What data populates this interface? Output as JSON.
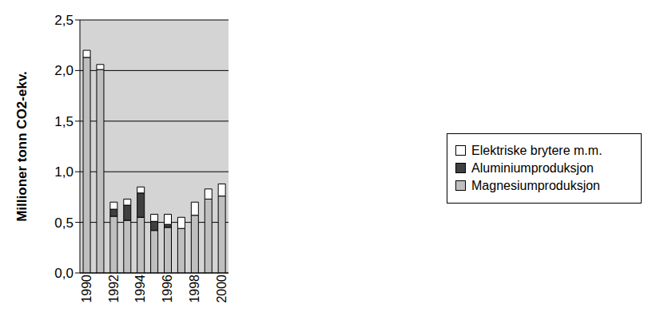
{
  "chart_data": {
    "type": "bar",
    "y_label": "Millioner tonn CO2-ekv.",
    "categories": [
      "1990",
      null,
      "1992",
      null,
      "1994",
      null,
      "1996",
      null,
      "1998",
      null,
      "2000"
    ],
    "series": [
      {
        "name": "Magnesiumproduksjon",
        "color": "#bfbfbf",
        "values": [
          2.13,
          2.01,
          0.56,
          0.52,
          0.55,
          0.42,
          0.45,
          0.44,
          0.57,
          0.73,
          0.76
        ]
      },
      {
        "name": "Aluminiumproduksjon",
        "color": "#404040",
        "values": [
          0,
          0,
          0.07,
          0.15,
          0.24,
          0.09,
          0.03,
          0,
          0,
          0,
          0
        ]
      },
      {
        "name": "Elektriske brytere m.m.",
        "color": "#ffffff",
        "values": [
          0.07,
          0.05,
          0.07,
          0.06,
          0.06,
          0.07,
          0.1,
          0.11,
          0.13,
          0.1,
          0.12
        ]
      }
    ],
    "ylim": [
      0,
      2.5
    ],
    "yticks": [
      {
        "value": 0,
        "label": "0,0"
      },
      {
        "value": 0.5,
        "label": "0,5"
      },
      {
        "value": 1,
        "label": "1,0"
      },
      {
        "value": 1.5,
        "label": "1,5"
      },
      {
        "value": 2,
        "label": "2,0"
      },
      {
        "value": 2.5,
        "label": "2,5"
      }
    ],
    "stacked": true,
    "grid": true,
    "legend": "right"
  }
}
